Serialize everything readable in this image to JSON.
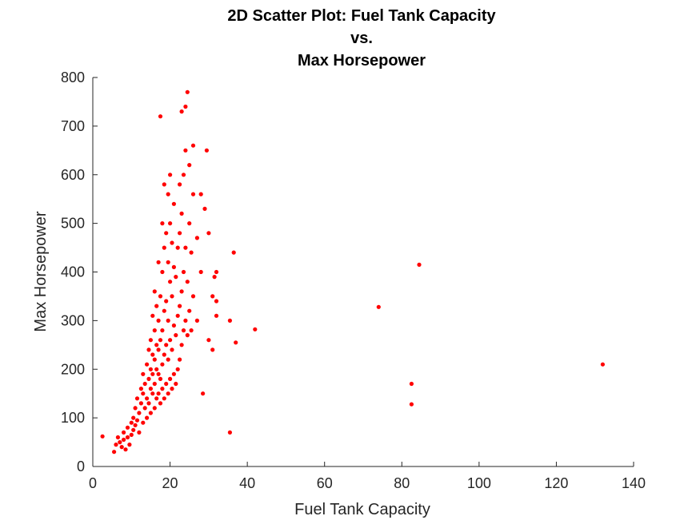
{
  "chart_data": {
    "type": "scatter",
    "title": [
      "2D Scatter Plot: Fuel Tank Capacity",
      "vs.",
      "Max Horsepower"
    ],
    "xlabel": "Fuel Tank Capacity",
    "ylabel": "Max Horsepower",
    "xlim": [
      0,
      140
    ],
    "ylim": [
      0,
      800
    ],
    "xticks": [
      "0",
      "20",
      "40",
      "60",
      "80",
      "100",
      "120",
      "140"
    ],
    "yticks": [
      "0",
      "100",
      "200",
      "300",
      "400",
      "500",
      "600",
      "700",
      "800"
    ],
    "grid": false,
    "marker_color": "#ff0000",
    "series": [
      {
        "points": [
          [
            2.5,
            62
          ],
          [
            5.5,
            30
          ],
          [
            6,
            45
          ],
          [
            6.5,
            60
          ],
          [
            7,
            50
          ],
          [
            7.5,
            40
          ],
          [
            8,
            70
          ],
          [
            8,
            55
          ],
          [
            8.5,
            35
          ],
          [
            9,
            80
          ],
          [
            9,
            60
          ],
          [
            9.5,
            45
          ],
          [
            10,
            90
          ],
          [
            10,
            65
          ],
          [
            10.5,
            100
          ],
          [
            10.5,
            75
          ],
          [
            11,
            85
          ],
          [
            11,
            120
          ],
          [
            11.5,
            95
          ],
          [
            11.5,
            140
          ],
          [
            12,
            70
          ],
          [
            12,
            110
          ],
          [
            12.5,
            130
          ],
          [
            12.5,
            160
          ],
          [
            13,
            90
          ],
          [
            13,
            150
          ],
          [
            13,
            190
          ],
          [
            13.5,
            120
          ],
          [
            13.5,
            170
          ],
          [
            14,
            100
          ],
          [
            14,
            140
          ],
          [
            14,
            210
          ],
          [
            14.5,
            130
          ],
          [
            14.5,
            180
          ],
          [
            14.5,
            240
          ],
          [
            15,
            110
          ],
          [
            15,
            160
          ],
          [
            15,
            200
          ],
          [
            15,
            260
          ],
          [
            15.5,
            150
          ],
          [
            15.5,
            190
          ],
          [
            15.5,
            230
          ],
          [
            15.5,
            310
          ],
          [
            16,
            120
          ],
          [
            16,
            170
          ],
          [
            16,
            220
          ],
          [
            16,
            280
          ],
          [
            16,
            360
          ],
          [
            16.5,
            140
          ],
          [
            16.5,
            200
          ],
          [
            16.5,
            250
          ],
          [
            16.5,
            330
          ],
          [
            17,
            150
          ],
          [
            17,
            190
          ],
          [
            17,
            240
          ],
          [
            17,
            300
          ],
          [
            17,
            420
          ],
          [
            17.5,
            130
          ],
          [
            17.5,
            180
          ],
          [
            17.5,
            260
          ],
          [
            17.5,
            350
          ],
          [
            17.5,
            720
          ],
          [
            18,
            160
          ],
          [
            18,
            210
          ],
          [
            18,
            280
          ],
          [
            18,
            400
          ],
          [
            18,
            500
          ],
          [
            18.5,
            140
          ],
          [
            18.5,
            230
          ],
          [
            18.5,
            320
          ],
          [
            18.5,
            450
          ],
          [
            18.5,
            580
          ],
          [
            19,
            170
          ],
          [
            19,
            250
          ],
          [
            19,
            340
          ],
          [
            19,
            480
          ],
          [
            19.5,
            150
          ],
          [
            19.5,
            220
          ],
          [
            19.5,
            300
          ],
          [
            19.5,
            420
          ],
          [
            19.5,
            560
          ],
          [
            20,
            180
          ],
          [
            20,
            260
          ],
          [
            20,
            380
          ],
          [
            20,
            500
          ],
          [
            20,
            600
          ],
          [
            20.5,
            160
          ],
          [
            20.5,
            240
          ],
          [
            20.5,
            350
          ],
          [
            20.5,
            460
          ],
          [
            21,
            190
          ],
          [
            21,
            290
          ],
          [
            21,
            410
          ],
          [
            21,
            540
          ],
          [
            21.5,
            170
          ],
          [
            21.5,
            270
          ],
          [
            21.5,
            390
          ],
          [
            22,
            200
          ],
          [
            22,
            310
          ],
          [
            22,
            450
          ],
          [
            22.5,
            220
          ],
          [
            22.5,
            330
          ],
          [
            22.5,
            480
          ],
          [
            22.5,
            580
          ],
          [
            23,
            250
          ],
          [
            23,
            360
          ],
          [
            23,
            520
          ],
          [
            23,
            730
          ],
          [
            23.5,
            280
          ],
          [
            23.5,
            400
          ],
          [
            23.5,
            600
          ],
          [
            24,
            300
          ],
          [
            24,
            450
          ],
          [
            24,
            650
          ],
          [
            24,
            740
          ],
          [
            24.5,
            270
          ],
          [
            24.5,
            380
          ],
          [
            24.5,
            770
          ],
          [
            25,
            320
          ],
          [
            25,
            500
          ],
          [
            25,
            620
          ],
          [
            25.5,
            280
          ],
          [
            25.5,
            440
          ],
          [
            26,
            350
          ],
          [
            26,
            560
          ],
          [
            26,
            660
          ],
          [
            27,
            300
          ],
          [
            27,
            470
          ],
          [
            28,
            400
          ],
          [
            28,
            560
          ],
          [
            28.5,
            150
          ],
          [
            29,
            530
          ],
          [
            29.5,
            650
          ],
          [
            30,
            480
          ],
          [
            30,
            260
          ],
          [
            31,
            350
          ],
          [
            31,
            240
          ],
          [
            31.5,
            390
          ],
          [
            32,
            400
          ],
          [
            32,
            340
          ],
          [
            32,
            310
          ],
          [
            35.5,
            300
          ],
          [
            35.5,
            70
          ],
          [
            36.5,
            440
          ],
          [
            37,
            255
          ],
          [
            42,
            282
          ],
          [
            74,
            328
          ],
          [
            82.5,
            170
          ],
          [
            82.5,
            128
          ],
          [
            84.5,
            415
          ],
          [
            132,
            210
          ]
        ]
      }
    ]
  }
}
